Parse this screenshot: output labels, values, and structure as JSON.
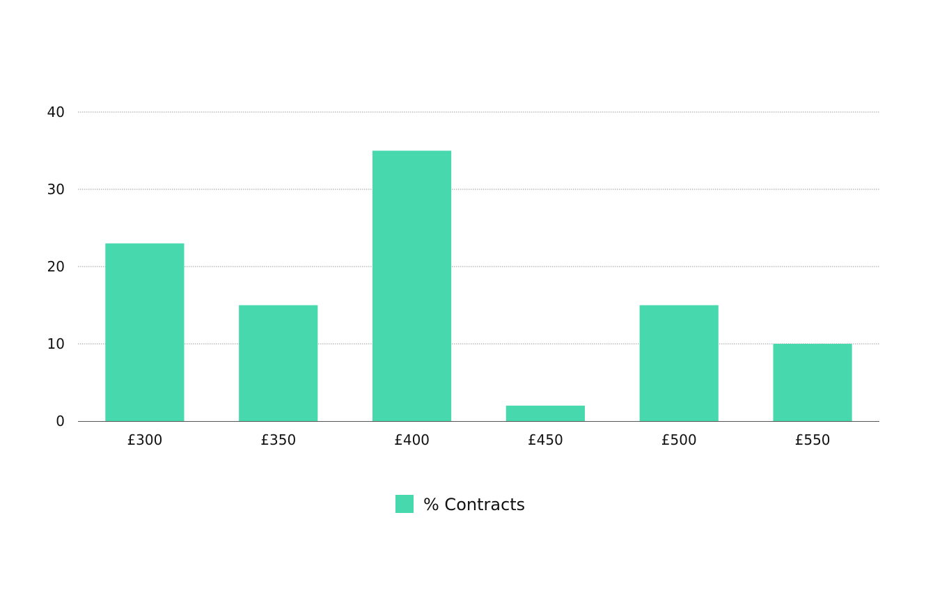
{
  "chart_data": {
    "type": "bar",
    "categories": [
      "£300",
      "£350",
      "£400",
      "£450",
      "£500",
      "£550"
    ],
    "series": [
      {
        "name": "% Contracts",
        "values": [
          23,
          15,
          35,
          2,
          15,
          10
        ],
        "color": "#47d8ae"
      }
    ],
    "ylim": [
      0,
      40
    ],
    "yticks": [
      0,
      10,
      20,
      30,
      40
    ],
    "grid": true,
    "legend_position": "bottom-center",
    "title": "",
    "xlabel": "",
    "ylabel": ""
  }
}
